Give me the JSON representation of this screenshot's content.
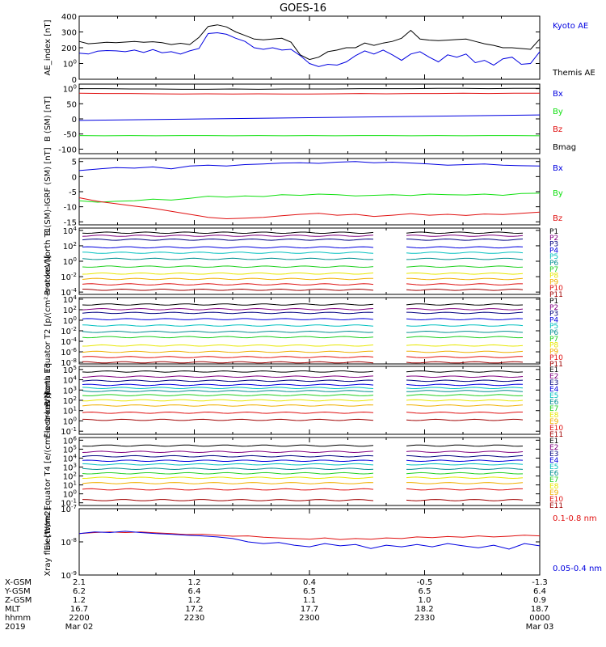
{
  "title": "GOES-16",
  "colors": {
    "black": "#000000",
    "blue": "#0000e0",
    "green": "#10e010",
    "red": "#e01010",
    "purple": "#800080",
    "navy": "#000080",
    "cyan": "#00d8d8",
    "teal": "#009090",
    "yellow": "#e8e800",
    "orange": "#f0b000",
    "darkred": "#a00000"
  },
  "chart_data": [
    {
      "type": "line",
      "panel": "AE index",
      "ylabel": "AE_index [nT]",
      "ylim": [
        0,
        400
      ],
      "yticks": [
        "0",
        "100",
        "200",
        "300",
        "400"
      ],
      "legend_placement": "right",
      "series": [
        {
          "name": "Kyoto AE",
          "color": "#0000e0",
          "values": [
            165,
            160,
            178,
            182,
            180,
            175,
            185,
            170,
            188,
            168,
            175,
            160,
            180,
            195,
            290,
            295,
            285,
            260,
            240,
            200,
            190,
            200,
            185,
            190,
            150,
            100,
            80,
            95,
            90,
            110,
            150,
            180,
            160,
            185,
            155,
            120,
            160,
            175,
            140,
            110,
            155,
            140,
            160,
            105,
            120,
            90,
            130,
            140,
            95,
            100,
            175
          ]
        },
        {
          "name": "Themis AE",
          "color": "#000000",
          "values": [
            240,
            225,
            230,
            235,
            232,
            236,
            240,
            235,
            238,
            232,
            220,
            228,
            220,
            265,
            335,
            345,
            332,
            300,
            278,
            255,
            250,
            255,
            260,
            235,
            155,
            125,
            140,
            175,
            185,
            200,
            200,
            230,
            215,
            230,
            240,
            260,
            310,
            255,
            248,
            245,
            248,
            252,
            255,
            240,
            225,
            215,
            200,
            200,
            195,
            190,
            255
          ]
        }
      ]
    },
    {
      "type": "line",
      "panel": "B (SM)",
      "ylabel": "B (SM) [nT]",
      "ylim": [
        -115,
        115
      ],
      "yticks": [
        "-100",
        "-50",
        "0",
        "50",
        "100"
      ],
      "legend_placement": "right",
      "series": [
        {
          "name": "Bx",
          "color": "#0000e0",
          "values": [
            -5,
            -4,
            -3,
            -2,
            -1,
            0,
            1,
            2,
            3,
            4,
            5,
            6,
            7,
            8,
            9,
            10,
            11,
            12,
            13
          ]
        },
        {
          "name": "By",
          "color": "#10e010",
          "values": [
            -55,
            -56,
            -55,
            -56,
            -55,
            -55,
            -56,
            -55,
            -56,
            -55,
            -56,
            -55,
            -55,
            -56,
            -55,
            -56,
            -55,
            -55,
            -56
          ]
        },
        {
          "name": "Bz",
          "color": "#e01010",
          "values": [
            85,
            84,
            84,
            83,
            82,
            83,
            82,
            83,
            82,
            82,
            83,
            84,
            83,
            84,
            84,
            85,
            84,
            85,
            85
          ]
        },
        {
          "name": "Bmag",
          "color": "#000000",
          "values": [
            100,
            100,
            99,
            99,
            98,
            98,
            99,
            98,
            99,
            99,
            99,
            100,
            100,
            100,
            101,
            101,
            100,
            101,
            101
          ]
        }
      ]
    },
    {
      "type": "line",
      "panel": "B (SM)-IGRF (SM)",
      "ylabel": "B (SM)-IGRF (SM) [nT]",
      "ylim": [
        -16,
        6
      ],
      "yticks": [
        "-15",
        "-10",
        "-5",
        "0",
        "5"
      ],
      "legend_placement": "right",
      "series": [
        {
          "name": "Bx",
          "color": "#0000e0",
          "values": [
            2,
            2.5,
            3,
            2.8,
            3.2,
            2.6,
            3.5,
            3.8,
            3.5,
            4,
            4.2,
            4.5,
            4.6,
            4.4,
            4.8,
            5,
            4.6,
            4.8,
            4.5,
            4.2,
            3.8,
            4,
            4.2,
            3.8,
            3.6,
            3.5
          ]
        },
        {
          "name": "By",
          "color": "#10e010",
          "values": [
            -8,
            -8.5,
            -8.2,
            -8,
            -7.5,
            -7.8,
            -7.2,
            -6.5,
            -6.8,
            -6.4,
            -6.6,
            -6,
            -6.2,
            -5.8,
            -6,
            -6.4,
            -6.2,
            -6,
            -6.3,
            -5.8,
            -6,
            -6.1,
            -5.8,
            -6.2,
            -5.6,
            -5.5
          ]
        },
        {
          "name": "Bz",
          "color": "#e01010",
          "values": [
            -7,
            -8.2,
            -9,
            -9.8,
            -10.5,
            -11.5,
            -12.5,
            -13.5,
            -14,
            -13.8,
            -13.5,
            -13,
            -12.5,
            -12.2,
            -12.8,
            -12.5,
            -13.2,
            -12.8,
            -12.3,
            -12.8,
            -12.5,
            -12.9,
            -12.4,
            -12.6,
            -12.2,
            -11.8
          ]
        }
      ]
    },
    {
      "type": "line",
      "panel": "Protons North T1",
      "ylabel": "Protons North T1",
      "yscale": "log",
      "yticks": [
        "10-4",
        "10-2",
        "100",
        "102",
        "104"
      ],
      "legend_placement": "right",
      "gap": "≈2319–2327 (no data)",
      "series": [
        {
          "name": "P1",
          "color": "#000000",
          "log_value": 3.7
        },
        {
          "name": "P2",
          "color": "#800080",
          "log_value": 3.3
        },
        {
          "name": "P3",
          "color": "#000080",
          "log_value": 2.8
        },
        {
          "name": "P4",
          "color": "#0000e0",
          "log_value": 1.8
        },
        {
          "name": "P5",
          "color": "#00c0c0",
          "log_value": 1.1
        },
        {
          "name": "P6",
          "color": "#009090",
          "log_value": 0.3
        },
        {
          "name": "P7",
          "color": "#20d020",
          "log_value": -0.7
        },
        {
          "name": "P8",
          "color": "#e8e800",
          "log_value": -1.6
        },
        {
          "name": "P9",
          "color": "#f0b000",
          "log_value": -2.3
        },
        {
          "name": "P10",
          "color": "#e01010",
          "log_value": -3.0
        },
        {
          "name": "P11",
          "color": "#a00000",
          "log_value": -3.7
        }
      ]
    },
    {
      "type": "line",
      "panel": "Protons Equator T2",
      "ylabel": "Protons Equator T2 [p/(cm²-s-sr-keV)]",
      "yscale": "log",
      "yticks": [
        "10-8",
        "10-6",
        "10-4",
        "10-2",
        "100",
        "102",
        "104"
      ],
      "legend_placement": "right",
      "series": [
        {
          "name": "P1",
          "color": "#000000",
          "log_value": 3.0
        },
        {
          "name": "P2",
          "color": "#800080",
          "log_value": 2.1
        },
        {
          "name": "P3",
          "color": "#000080",
          "log_value": 1.4
        },
        {
          "name": "P4",
          "color": "#0000e0",
          "log_value": 0.2
        },
        {
          "name": "P5",
          "color": "#00c0c0",
          "log_value": -1.0
        },
        {
          "name": "P6",
          "color": "#009090",
          "log_value": -2.2
        },
        {
          "name": "P7",
          "color": "#20d020",
          "log_value": -3.2
        },
        {
          "name": "P8",
          "color": "#e8e800",
          "log_value": -4.8
        },
        {
          "name": "P9",
          "color": "#f0b000",
          "log_value": -6.0
        },
        {
          "name": "P10",
          "color": "#e01010",
          "log_value": -7.0
        },
        {
          "name": "P11",
          "color": "#a00000",
          "log_value": -8.0
        }
      ]
    },
    {
      "type": "line",
      "panel": "Electrons North T3",
      "ylabel": "Electrons North T3",
      "yscale": "log",
      "yticks": [
        "10-1",
        "100",
        "101",
        "102",
        "103",
        "104",
        "105"
      ],
      "legend_placement": "right",
      "series": [
        {
          "name": "E1",
          "color": "#000000",
          "log_value": 4.8
        },
        {
          "name": "E2",
          "color": "#800080",
          "log_value": 4.3
        },
        {
          "name": "E3",
          "color": "#000080",
          "log_value": 3.9
        },
        {
          "name": "E4",
          "color": "#0000e0",
          "log_value": 3.5
        },
        {
          "name": "E5",
          "color": "#00c0c0",
          "log_value": 3.2
        },
        {
          "name": "E6",
          "color": "#009090",
          "log_value": 2.9
        },
        {
          "name": "E7",
          "color": "#20d020",
          "log_value": 2.5
        },
        {
          "name": "E8",
          "color": "#e8e800",
          "log_value": 2.0
        },
        {
          "name": "E9",
          "color": "#f0b000",
          "log_value": 1.5
        },
        {
          "name": "E10",
          "color": "#e01010",
          "log_value": 0.8
        },
        {
          "name": "E11",
          "color": "#a00000",
          "log_value": 0.1
        }
      ]
    },
    {
      "type": "line",
      "panel": "Electrons Equator T4",
      "ylabel": "Electrons Equator T4 [e/(cm²-s-sr-keV)]",
      "yscale": "log",
      "yticks": [
        "10-1",
        "100",
        "101",
        "102",
        "103",
        "104",
        "105",
        "106"
      ],
      "legend_placement": "right",
      "series": [
        {
          "name": "E1",
          "color": "#000000",
          "log_value": 5.4
        },
        {
          "name": "E2",
          "color": "#800080",
          "log_value": 4.7
        },
        {
          "name": "E3",
          "color": "#000080",
          "log_value": 4.2
        },
        {
          "name": "E4",
          "color": "#0000e0",
          "log_value": 3.7
        },
        {
          "name": "E5",
          "color": "#00c0c0",
          "log_value": 3.3
        },
        {
          "name": "E6",
          "color": "#009090",
          "log_value": 2.8
        },
        {
          "name": "E7",
          "color": "#20d020",
          "log_value": 2.3
        },
        {
          "name": "E8",
          "color": "#e8e800",
          "log_value": 1.8
        },
        {
          "name": "E9",
          "color": "#f0b000",
          "log_value": 1.2
        },
        {
          "name": "E10",
          "color": "#e01010",
          "log_value": 0.5
        },
        {
          "name": "E11",
          "color": "#a00000",
          "log_value": -0.7
        }
      ]
    },
    {
      "type": "line",
      "panel": "Xray flux",
      "ylabel": "Xray flux [W/m2]",
      "yscale": "log",
      "yticks": [
        "10-9",
        "10-8",
        "10-7"
      ],
      "legend_placement": "right",
      "series": [
        {
          "name": "0.1-0.8 nm",
          "color": "#e01010",
          "log_values": [
            -7.75,
            -7.72,
            -7.7,
            -7.72,
            -7.7,
            -7.73,
            -7.75,
            -7.78,
            -7.77,
            -7.8,
            -7.83,
            -7.82,
            -7.86,
            -7.88,
            -7.9,
            -7.92,
            -7.88,
            -7.93,
            -7.9,
            -7.92,
            -7.88,
            -7.9,
            -7.85,
            -7.87,
            -7.84,
            -7.86,
            -7.82,
            -7.85,
            -7.83,
            -7.8,
            -7.82
          ]
        },
        {
          "name": "0.05-0.4 nm",
          "color": "#0000e0",
          "log_values": [
            -7.75,
            -7.7,
            -7.72,
            -7.68,
            -7.72,
            -7.75,
            -7.77,
            -7.8,
            -7.82,
            -7.85,
            -7.9,
            -8.0,
            -8.05,
            -8.02,
            -8.1,
            -8.15,
            -8.05,
            -8.12,
            -8.08,
            -8.2,
            -8.1,
            -8.15,
            -8.08,
            -8.15,
            -8.05,
            -8.12,
            -8.18,
            -8.1,
            -8.22,
            -8.05,
            -8.12
          ]
        }
      ]
    }
  ],
  "x_axis": {
    "row_labels": [
      "X-GSM",
      "Y-GSM",
      "Z-GSM",
      "MLT",
      "hhmm",
      "2019"
    ],
    "columns": [
      {
        "values": [
          "2.1",
          "6.2",
          "1.2",
          "16.7",
          "2200",
          "Mar 02"
        ]
      },
      {
        "values": [
          "1.2",
          "6.4",
          "1.2",
          "17.2",
          "2230",
          ""
        ]
      },
      {
        "values": [
          "0.4",
          "6.5",
          "1.1",
          "17.7",
          "2300",
          ""
        ]
      },
      {
        "values": [
          "-0.5",
          "6.5",
          "1.0",
          "18.2",
          "2330",
          ""
        ]
      },
      {
        "values": [
          "-1.3",
          "6.4",
          "0.9",
          "18.7",
          "0000",
          "Mar 03"
        ]
      }
    ]
  }
}
